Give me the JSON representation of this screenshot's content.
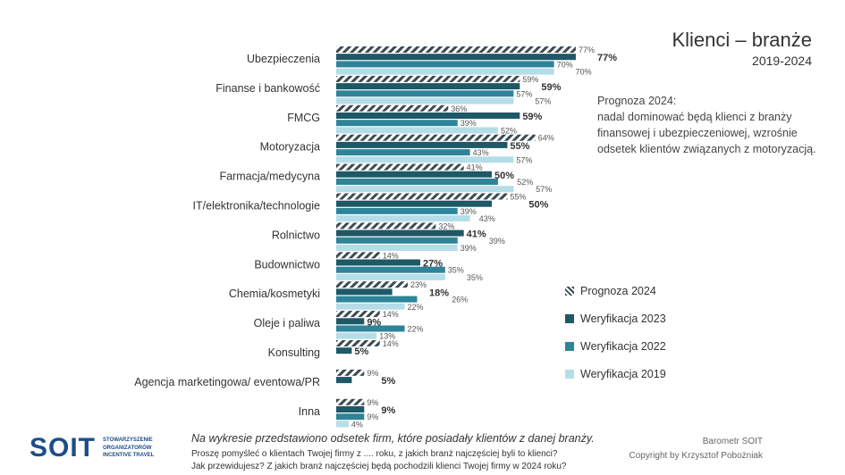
{
  "header": {
    "title": "Klienci – branże",
    "subtitle": "2019-2024"
  },
  "note": {
    "lines": [
      "Prognoza 2024:",
      "nadal dominować będą klienci z branży",
      "finansowej i ubezpieczeniowej, wzrośnie",
      "odsetek klientów związanych z motoryzacją."
    ]
  },
  "chart_data": {
    "type": "bar",
    "orientation": "horizontal",
    "title": "Klienci – branże",
    "subtitle": "2019-2024",
    "xlim": [
      0,
      100
    ],
    "unit": "%",
    "categories": [
      "Ubezpieczenia",
      "Finanse i bankowość",
      "FMCG",
      "Motoryzacja",
      "Farmacja/medycyna",
      "IT/elektronika/technologie",
      "Rolnictwo",
      "Budownictwo",
      "Chemia/kosmetyki",
      "Oleje i paliwa",
      "Konsulting",
      "Agencja marketingowa/ eventowa/PR",
      "Inna"
    ],
    "series": [
      {
        "name": "Prognoza 2024",
        "color": "#3b4a52",
        "pattern": "hatch",
        "values": [
          77,
          59,
          36,
          64,
          41,
          55,
          32,
          14,
          23,
          14,
          14,
          9,
          9
        ]
      },
      {
        "name": "Weryfikacja 2023",
        "color": "#1f5866",
        "values": [
          77,
          59,
          59,
          55,
          50,
          50,
          41,
          27,
          18,
          9,
          5,
          5,
          9
        ]
      },
      {
        "name": "Weryfikacja 2022",
        "color": "#2e8499",
        "values": [
          70,
          57,
          39,
          43,
          52,
          39,
          39,
          35,
          26,
          22,
          null,
          null,
          9
        ]
      },
      {
        "name": "Weryfikacja 2019",
        "color": "#b5dde8",
        "values": [
          70,
          57,
          52,
          57,
          57,
          43,
          39,
          35,
          22,
          13,
          null,
          null,
          4
        ]
      }
    ],
    "legend": "right"
  },
  "footer": {
    "caption": "Na wykresie przedstawiono odsetek firm, które posiadały klientów z danej branży.",
    "question1": "Proszę pomyśleć o klientach Twojej firmy z .... roku, z jakich branż najczęściej byli to klienci?",
    "question2": "Jak przewidujesz? Z jakich branż najczęściej będą pochodzili klienci Twojej firmy w 2024 roku?",
    "credit1": "Barometr SOIT",
    "credit2": "Copyright by Krzysztof Pobożniak",
    "logo": "SOIT",
    "logo_text": [
      "STOWARZYSZENIE",
      "ORGANIZATORÓW",
      "INCENTIVE TRAVEL"
    ]
  }
}
